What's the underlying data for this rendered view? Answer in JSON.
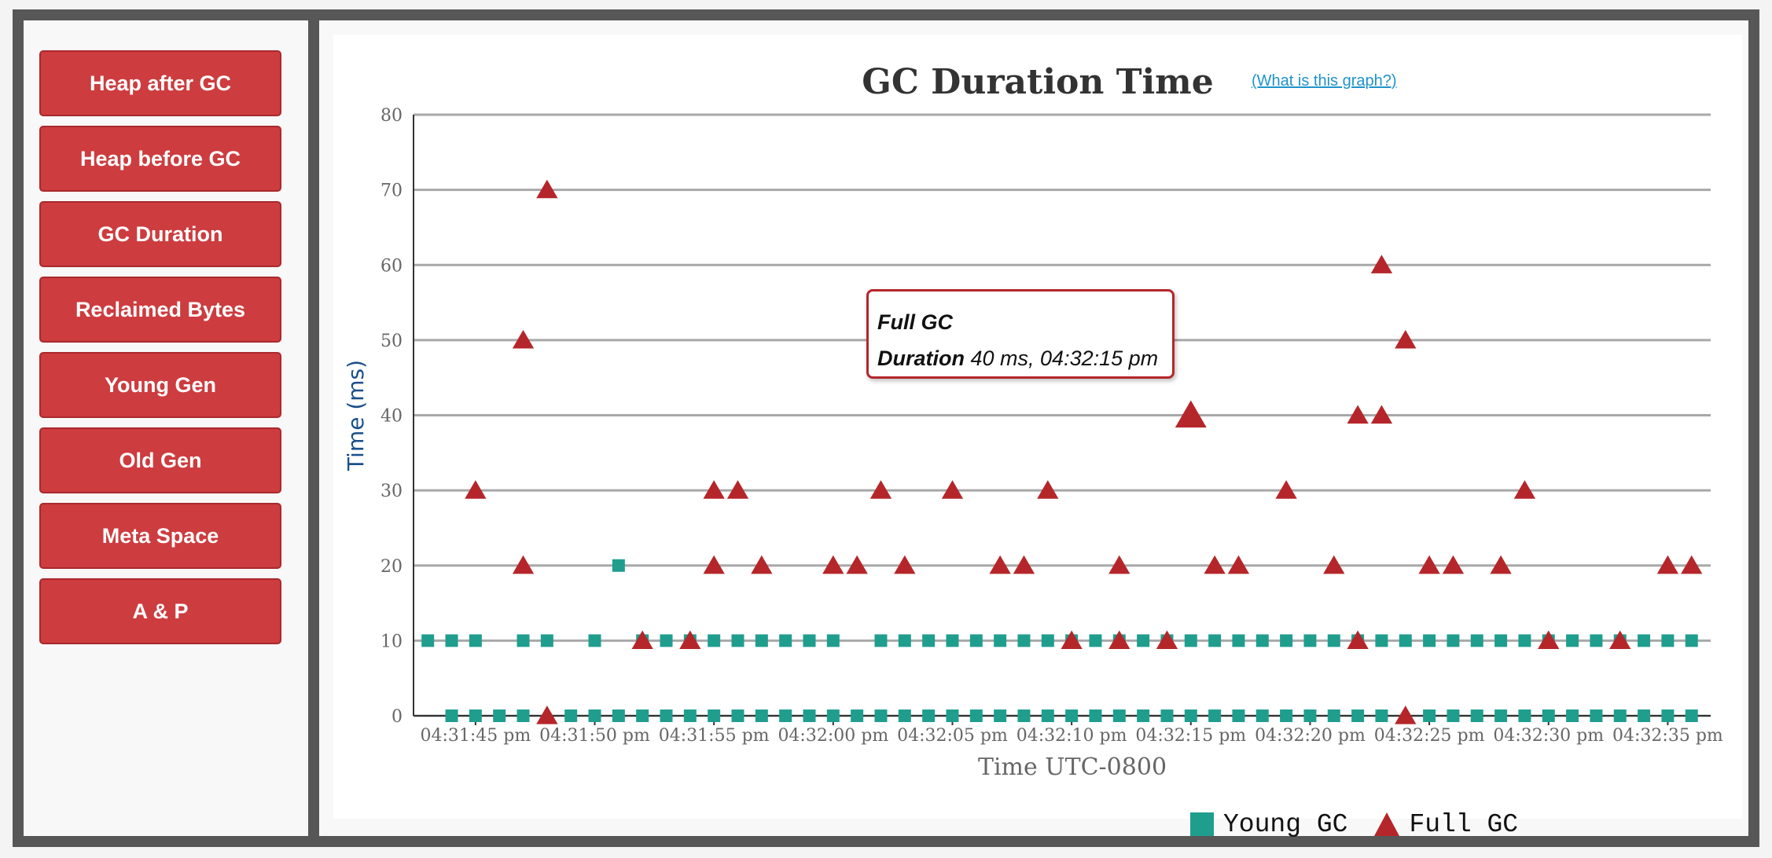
{
  "sidebar": {
    "items": [
      {
        "label": "Heap after GC"
      },
      {
        "label": "Heap before GC"
      },
      {
        "label": "GC Duration"
      },
      {
        "label": "Reclaimed Bytes"
      },
      {
        "label": "Young Gen"
      },
      {
        "label": "Old Gen"
      },
      {
        "label": "Meta Space"
      },
      {
        "label": "A & P"
      }
    ]
  },
  "colors": {
    "button": "#cd3c3f",
    "young": "#1f9e8e",
    "full": "#b5262a"
  },
  "help_link": "(What is this graph?)",
  "tooltip": {
    "series": "Full GC",
    "duration_label": "Duration",
    "duration_value": "40 ms, 04:32:15 pm"
  },
  "chart_data": {
    "type": "scatter",
    "title": "GC Duration Time",
    "xlabel": "Time UTC-0800",
    "ylabel": "Time (ms)",
    "ylim": [
      0,
      80
    ],
    "yticks": [
      0,
      10,
      20,
      30,
      40,
      50,
      60,
      70,
      80
    ],
    "xlim": [
      "04:31:42.4",
      "04:32:36.8"
    ],
    "xticks": [
      "04:31:45 pm",
      "04:31:50 pm",
      "04:31:55 pm",
      "04:32:00 pm",
      "04:32:05 pm",
      "04:32:10 pm",
      "04:32:15 pm",
      "04:32:20 pm",
      "04:32:25 pm",
      "04:32:30 pm",
      "04:32:35 pm"
    ],
    "grid": true,
    "legend": "bottom",
    "series": [
      {
        "name": "Young GC",
        "marker": "square",
        "points": [
          [
            "04:31:43",
            10
          ],
          [
            "04:31:44",
            10
          ],
          [
            "04:31:45",
            10
          ],
          [
            "04:31:47",
            10
          ],
          [
            "04:31:48",
            10
          ],
          [
            "04:31:50",
            10
          ],
          [
            "04:31:52",
            10
          ],
          [
            "04:31:53",
            10
          ],
          [
            "04:31:54",
            10
          ],
          [
            "04:31:55",
            10
          ],
          [
            "04:31:56",
            10
          ],
          [
            "04:31:57",
            10
          ],
          [
            "04:31:58",
            10
          ],
          [
            "04:31:59",
            10
          ],
          [
            "04:32:00",
            10
          ],
          [
            "04:32:02",
            10
          ],
          [
            "04:32:03",
            10
          ],
          [
            "04:32:04",
            10
          ],
          [
            "04:32:05",
            10
          ],
          [
            "04:32:06",
            10
          ],
          [
            "04:32:07",
            10
          ],
          [
            "04:32:08",
            10
          ],
          [
            "04:32:09",
            10
          ],
          [
            "04:32:10",
            10
          ],
          [
            "04:32:11",
            10
          ],
          [
            "04:32:12",
            10
          ],
          [
            "04:32:13",
            10
          ],
          [
            "04:32:14",
            10
          ],
          [
            "04:32:15",
            10
          ],
          [
            "04:32:16",
            10
          ],
          [
            "04:32:17",
            10
          ],
          [
            "04:32:18",
            10
          ],
          [
            "04:32:19",
            10
          ],
          [
            "04:32:20",
            10
          ],
          [
            "04:32:21",
            10
          ],
          [
            "04:32:22",
            10
          ],
          [
            "04:32:23",
            10
          ],
          [
            "04:32:24",
            10
          ],
          [
            "04:32:25",
            10
          ],
          [
            "04:32:26",
            10
          ],
          [
            "04:32:27",
            10
          ],
          [
            "04:32:28",
            10
          ],
          [
            "04:32:29",
            10
          ],
          [
            "04:32:30",
            10
          ],
          [
            "04:32:31",
            10
          ],
          [
            "04:32:32",
            10
          ],
          [
            "04:32:33",
            10
          ],
          [
            "04:32:34",
            10
          ],
          [
            "04:32:35",
            10
          ],
          [
            "04:32:36",
            10
          ],
          [
            "04:31:51",
            20
          ],
          [
            "04:31:44",
            0
          ],
          [
            "04:31:45",
            0
          ],
          [
            "04:31:46",
            0
          ],
          [
            "04:31:47",
            0
          ],
          [
            "04:31:49",
            0
          ],
          [
            "04:31:50",
            0
          ],
          [
            "04:31:51",
            0
          ],
          [
            "04:31:52",
            0
          ],
          [
            "04:31:53",
            0
          ],
          [
            "04:31:54",
            0
          ],
          [
            "04:31:55",
            0
          ],
          [
            "04:31:56",
            0
          ],
          [
            "04:31:57",
            0
          ],
          [
            "04:31:58",
            0
          ],
          [
            "04:31:59",
            0
          ],
          [
            "04:32:00",
            0
          ],
          [
            "04:32:01",
            0
          ],
          [
            "04:32:02",
            0
          ],
          [
            "04:32:03",
            0
          ],
          [
            "04:32:04",
            0
          ],
          [
            "04:32:05",
            0
          ],
          [
            "04:32:06",
            0
          ],
          [
            "04:32:07",
            0
          ],
          [
            "04:32:08",
            0
          ],
          [
            "04:32:09",
            0
          ],
          [
            "04:32:10",
            0
          ],
          [
            "04:32:11",
            0
          ],
          [
            "04:32:12",
            0
          ],
          [
            "04:32:13",
            0
          ],
          [
            "04:32:14",
            0
          ],
          [
            "04:32:15",
            0
          ],
          [
            "04:32:16",
            0
          ],
          [
            "04:32:17",
            0
          ],
          [
            "04:32:18",
            0
          ],
          [
            "04:32:19",
            0
          ],
          [
            "04:32:20",
            0
          ],
          [
            "04:32:21",
            0
          ],
          [
            "04:32:22",
            0
          ],
          [
            "04:32:23",
            0
          ],
          [
            "04:32:25",
            0
          ],
          [
            "04:32:26",
            0
          ],
          [
            "04:32:27",
            0
          ],
          [
            "04:32:28",
            0
          ],
          [
            "04:32:29",
            0
          ],
          [
            "04:32:30",
            0
          ],
          [
            "04:32:31",
            0
          ],
          [
            "04:32:32",
            0
          ],
          [
            "04:32:33",
            0
          ],
          [
            "04:32:34",
            0
          ],
          [
            "04:32:35",
            0
          ],
          [
            "04:32:36",
            0
          ]
        ]
      },
      {
        "name": "Full GC",
        "marker": "triangle",
        "points": [
          [
            "04:31:45",
            30
          ],
          [
            "04:31:47",
            50
          ],
          [
            "04:31:47",
            20
          ],
          [
            "04:31:48",
            70
          ],
          [
            "04:31:48",
            0
          ],
          [
            "04:31:52",
            10
          ],
          [
            "04:31:54",
            10
          ],
          [
            "04:31:55",
            30
          ],
          [
            "04:31:55",
            20
          ],
          [
            "04:31:56",
            30
          ],
          [
            "04:31:57",
            20
          ],
          [
            "04:32:00",
            20
          ],
          [
            "04:32:01",
            20
          ],
          [
            "04:32:02",
            30
          ],
          [
            "04:32:03",
            20
          ],
          [
            "04:32:05",
            30
          ],
          [
            "04:32:07",
            20
          ],
          [
            "04:32:08",
            20
          ],
          [
            "04:32:09",
            30
          ],
          [
            "04:32:10",
            10
          ],
          [
            "04:32:12",
            20
          ],
          [
            "04:32:12",
            10
          ],
          [
            "04:32:14",
            10
          ],
          [
            "04:32:15",
            40
          ],
          [
            "04:32:16",
            20
          ],
          [
            "04:32:17",
            20
          ],
          [
            "04:32:19",
            30
          ],
          [
            "04:32:21",
            20
          ],
          [
            "04:32:22",
            40
          ],
          [
            "04:32:22",
            10
          ],
          [
            "04:32:23",
            60
          ],
          [
            "04:32:23",
            40
          ],
          [
            "04:32:24",
            50
          ],
          [
            "04:32:24",
            0
          ],
          [
            "04:32:25",
            20
          ],
          [
            "04:32:26",
            20
          ],
          [
            "04:32:28",
            20
          ],
          [
            "04:32:29",
            30
          ],
          [
            "04:32:30",
            10
          ],
          [
            "04:32:33",
            10
          ],
          [
            "04:32:35",
            20
          ],
          [
            "04:32:36",
            20
          ]
        ],
        "highlighted": [
          "04:32:15",
          40
        ]
      }
    ]
  }
}
